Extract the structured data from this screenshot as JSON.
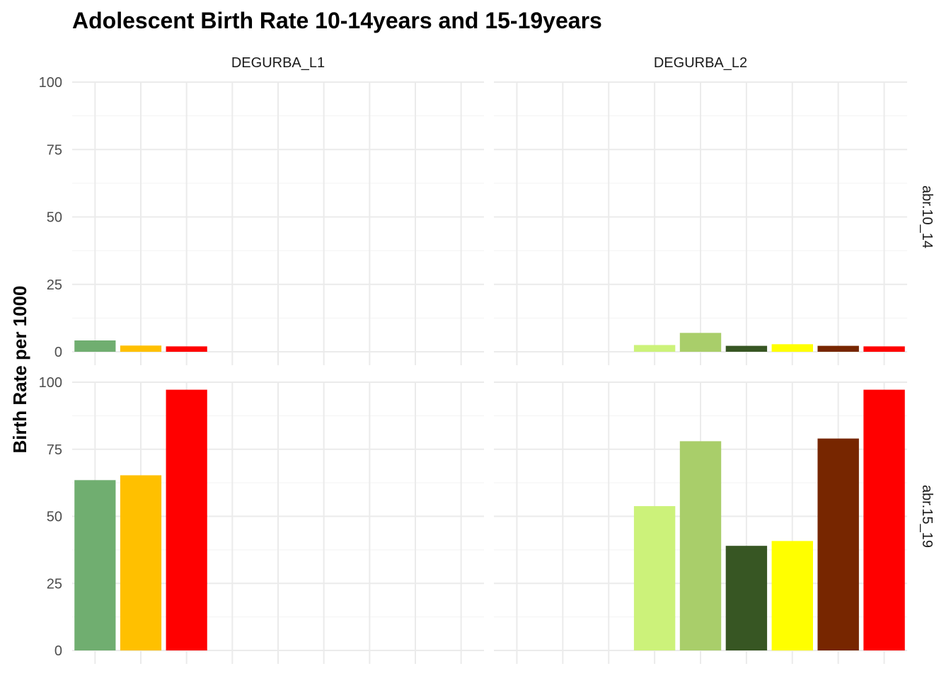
{
  "chart_data": {
    "type": "bar",
    "title": "Adolescent Birth Rate 10-14years and 15-19years",
    "ylabel": "Birth Rate per 1000",
    "xlabel": "",
    "ylim": [
      0,
      100
    ],
    "yticks": [
      "0",
      "25",
      "50",
      "75",
      "100"
    ],
    "grid": true,
    "legend": "none",
    "column_facets": [
      "DEGURBA_L1",
      "DEGURBA_L2"
    ],
    "row_facets": [
      "abr.10_14",
      "abr.15_19"
    ],
    "slot_count": 9,
    "panels": [
      {
        "column": "DEGURBA_L1",
        "row": "abr.10_14",
        "bars": [
          {
            "slot": 1,
            "value": 4.2,
            "color": "#70AE70"
          },
          {
            "slot": 2,
            "value": 2.3,
            "color": "#FFC000"
          },
          {
            "slot": 3,
            "value": 2.0,
            "color": "#FF0000"
          }
        ]
      },
      {
        "column": "DEGURBA_L2",
        "row": "abr.10_14",
        "bars": [
          {
            "slot": 4,
            "value": 2.5,
            "color": "#CCF27A"
          },
          {
            "slot": 5,
            "value": 7.0,
            "color": "#A9CE6A"
          },
          {
            "slot": 6,
            "value": 2.2,
            "color": "#375623"
          },
          {
            "slot": 7,
            "value": 2.8,
            "color": "#FFFF00"
          },
          {
            "slot": 8,
            "value": 2.2,
            "color": "#772600"
          },
          {
            "slot": 9,
            "value": 2.0,
            "color": "#FF0000"
          }
        ]
      },
      {
        "column": "DEGURBA_L1",
        "row": "abr.15_19",
        "bars": [
          {
            "slot": 1,
            "value": 63.5,
            "color": "#70AE70"
          },
          {
            "slot": 2,
            "value": 65.3,
            "color": "#FFC000"
          },
          {
            "slot": 3,
            "value": 97.2,
            "color": "#FF0000"
          }
        ]
      },
      {
        "column": "DEGURBA_L2",
        "row": "abr.15_19",
        "bars": [
          {
            "slot": 4,
            "value": 53.8,
            "color": "#CCF27A"
          },
          {
            "slot": 5,
            "value": 78.0,
            "color": "#A9CE6A"
          },
          {
            "slot": 6,
            "value": 39.0,
            "color": "#375623"
          },
          {
            "slot": 7,
            "value": 40.8,
            "color": "#FFFF00"
          },
          {
            "slot": 8,
            "value": 79.0,
            "color": "#772600"
          },
          {
            "slot": 9,
            "value": 97.2,
            "color": "#FF0000"
          }
        ]
      }
    ]
  }
}
